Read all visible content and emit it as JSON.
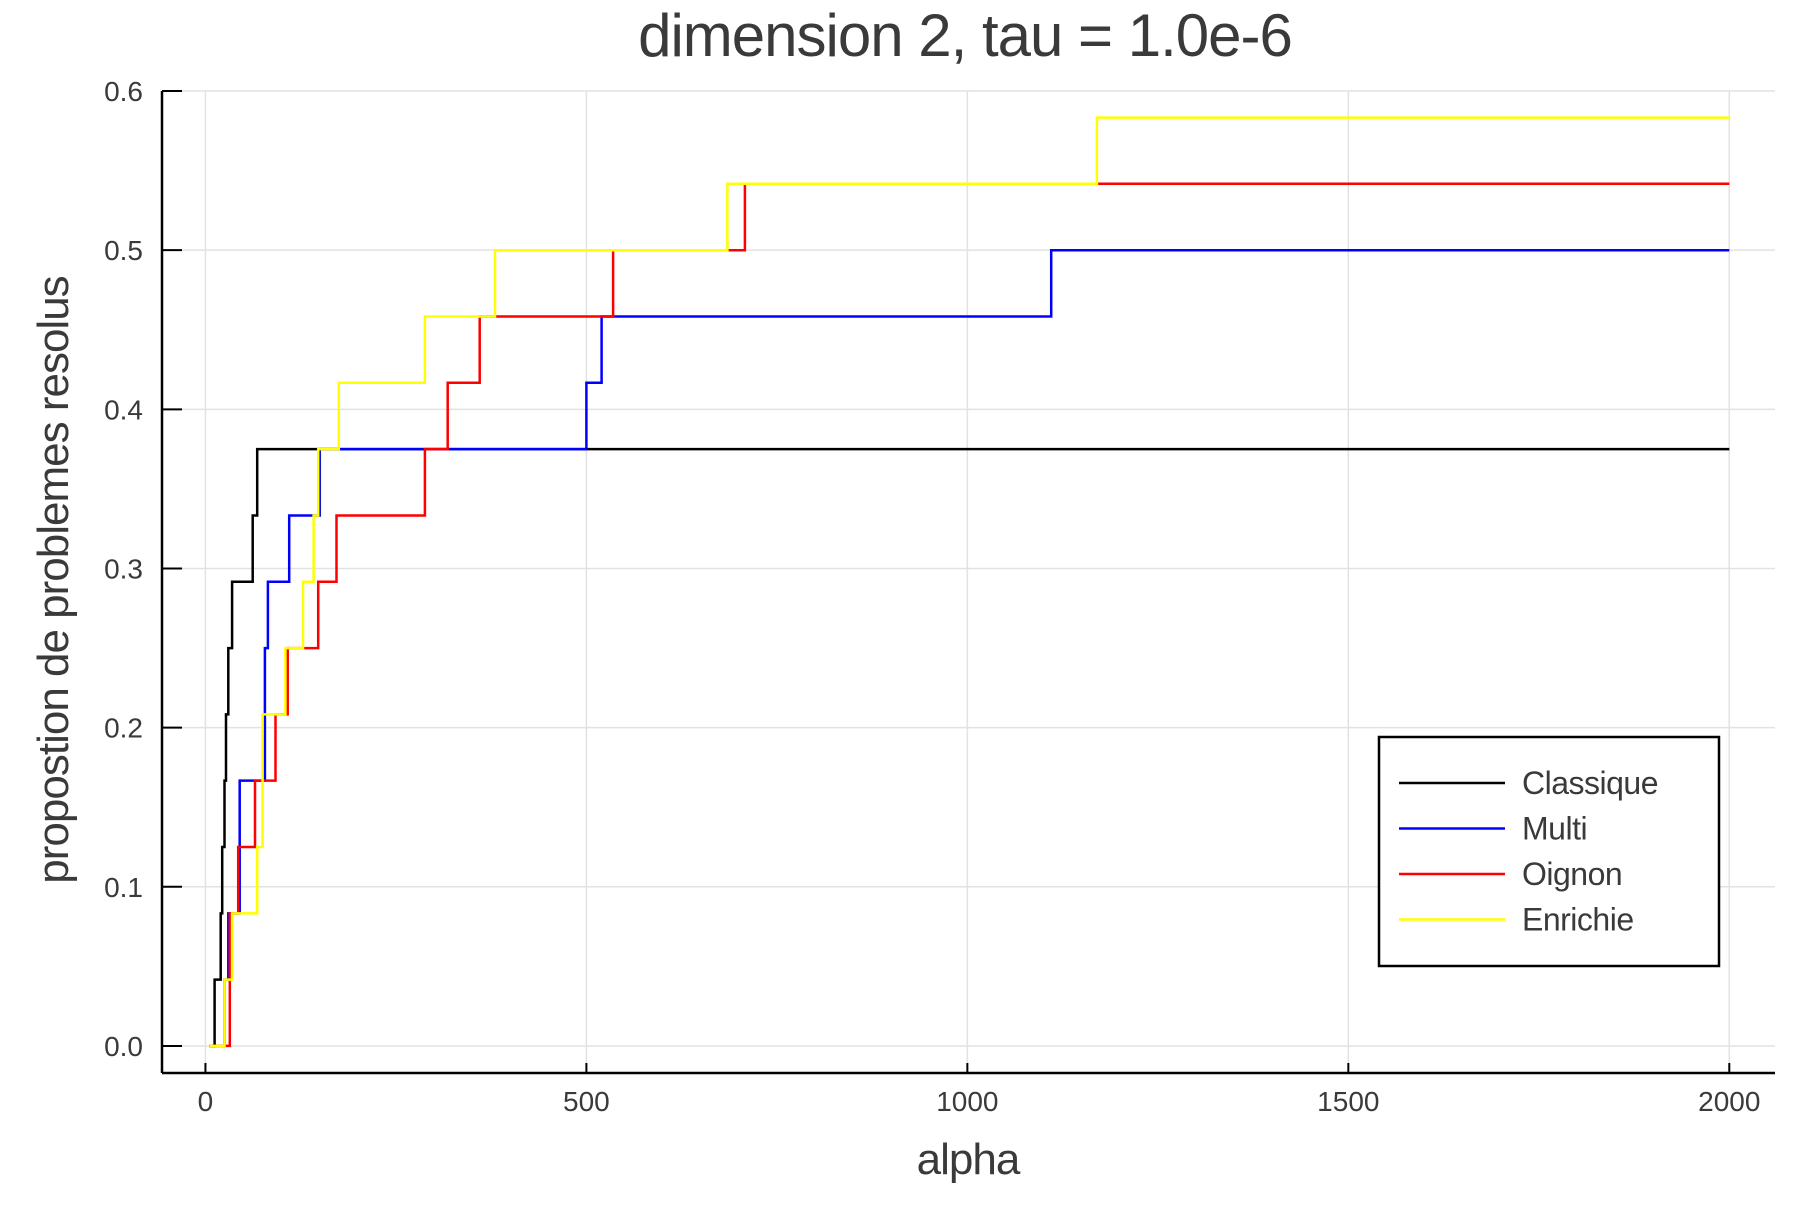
{
  "chart_data": {
    "type": "line",
    "step": true,
    "title": "dimension 2, tau = 1.0e-6",
    "xlabel": "alpha",
    "ylabel": "propostion de problemes resolus",
    "xlim": [
      -57,
      2060
    ],
    "ylim": [
      -0.017,
      0.6
    ],
    "xticks": [
      0,
      500,
      1000,
      1500,
      2000
    ],
    "xtick_labels": [
      "0",
      "500",
      "1000",
      "1500",
      "2000"
    ],
    "yticks": [
      0.0,
      0.1,
      0.2,
      0.3,
      0.4,
      0.5,
      0.6
    ],
    "ytick_labels": [
      "0.0",
      "0.1",
      "0.2",
      "0.3",
      "0.4",
      "0.5",
      "0.6"
    ],
    "grid": true,
    "legend_position": "bottom-right",
    "series": [
      {
        "name": "Classique",
        "color": "#000000",
        "x": [
          5,
          12,
          20,
          22,
          25,
          27,
          30,
          35,
          62,
          65,
          68,
          2000
        ],
        "y": [
          0.0,
          0.0417,
          0.0833,
          0.125,
          0.1667,
          0.2083,
          0.25,
          0.2917,
          0.3333,
          0.3333,
          0.375,
          0.375
        ]
      },
      {
        "name": "Multi",
        "color": "#0000ff",
        "x": [
          5,
          25,
          30,
          45,
          78,
          82,
          110,
          145,
          150,
          180,
          500,
          520,
          1110,
          2000
        ],
        "y": [
          0.0,
          0.0417,
          0.0833,
          0.1667,
          0.25,
          0.2917,
          0.3333,
          0.3333,
          0.375,
          0.375,
          0.4167,
          0.4583,
          0.5,
          0.5
        ]
      },
      {
        "name": "Oignon",
        "color": "#ff0000",
        "x": [
          5,
          32,
          43,
          65,
          92,
          108,
          118,
          148,
          172,
          288,
          318,
          360,
          535,
          708,
          2000
        ],
        "y": [
          0.0,
          0.0833,
          0.125,
          0.1667,
          0.2083,
          0.25,
          0.25,
          0.2917,
          0.3333,
          0.375,
          0.4167,
          0.4583,
          0.5,
          0.5417,
          0.5417
        ]
      },
      {
        "name": "Enrichie",
        "color": "#ffff00",
        "x": [
          5,
          25,
          35,
          68,
          75,
          105,
          128,
          142,
          148,
          175,
          288,
          380,
          685,
          1170,
          2000
        ],
        "y": [
          0.0,
          0.0417,
          0.0833,
          0.125,
          0.2083,
          0.25,
          0.2917,
          0.3333,
          0.375,
          0.4167,
          0.4583,
          0.5,
          0.5417,
          0.5833,
          0.5833
        ]
      }
    ]
  }
}
